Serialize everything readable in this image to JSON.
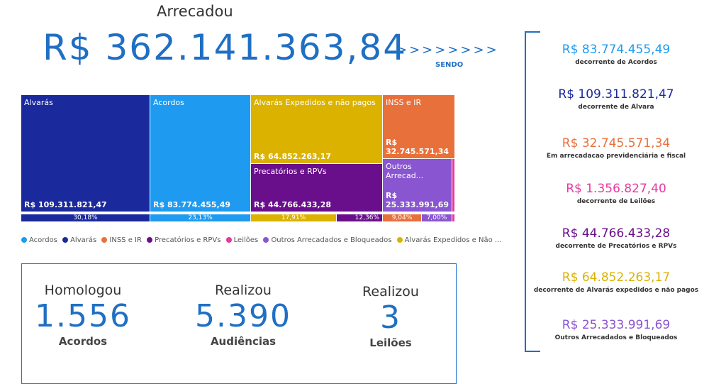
{
  "header": {
    "title": "Arrecadou",
    "total": "R$ 362.141.363,84",
    "arrows": ">>>>>>>>",
    "sendo": "SENDO"
  },
  "treemap": {
    "tiles": [
      {
        "label": "Alvarás",
        "value": "R$ 109.311.821,47",
        "color": "#1a2a9c"
      },
      {
        "label": "Acordos",
        "value": "R$ 83.774.455,49",
        "color": "#1e9bf0"
      },
      {
        "label": "Alvarás Expedidos e não pagos",
        "value": "R$ 64.852.263,17",
        "color": "#dbb200"
      },
      {
        "label": "Precatórios e RPVs",
        "value": "R$ 44.766.433,28",
        "color": "#6a0f8c"
      },
      {
        "label": "INSS e IR",
        "value": "R$ 32.745.571,34",
        "color": "#e8703a"
      },
      {
        "label": "Outros Arrecad...",
        "value": "R$ 25.333.991,69",
        "color": "#8a55d0"
      },
      {
        "label": "",
        "value": "",
        "color": "#e7399f"
      }
    ],
    "percents": [
      "30,18%",
      "23,13%",
      "17,91%",
      "12,36%",
      "9,04%",
      "7,00%"
    ]
  },
  "legend": [
    {
      "label": "Acordos",
      "color": "#1e9bf0"
    },
    {
      "label": "Alvarás",
      "color": "#1a2a9c"
    },
    {
      "label": "INSS e IR",
      "color": "#e8703a"
    },
    {
      "label": "Precatórios e RPVs",
      "color": "#6a0f8c"
    },
    {
      "label": "Leilões",
      "color": "#e7399f"
    },
    {
      "label": "Outros Arrecadados e Bloqueados",
      "color": "#8a55d0"
    },
    {
      "label": "Alvarás Expedidos e Não ...",
      "color": "#dbb200"
    }
  ],
  "kpis": [
    {
      "title": "Homologou",
      "number": "1.556",
      "subtitle": "Acordos"
    },
    {
      "title": "Realizou",
      "number": "5.390",
      "subtitle": "Audiências"
    },
    {
      "title": "Realizou",
      "number": "3",
      "subtitle": "Leilões"
    }
  ],
  "breakdown": [
    {
      "value": "R$ 83.774.455,49",
      "desc": "decorrente de Acordos",
      "color": "#1e9bf0"
    },
    {
      "value": "R$ 109.311.821,47",
      "desc": "decorrente de Alvara",
      "color": "#1a2a9c"
    },
    {
      "value": "R$ 32.745.571,34",
      "desc": "Em arrecadacao previdenciária e fiscal",
      "color": "#e8703a"
    },
    {
      "value": "R$ 1.356.827,40",
      "desc": "decorrente de Leilões",
      "color": "#e7399f"
    },
    {
      "value": "R$ 44.766.433,28",
      "desc": "decorrente de Precatórios e RPVs",
      "color": "#6a0f8c"
    },
    {
      "value": "R$ 64.852.263,17",
      "desc": "decorrente de Alvarás expedidos e não pagos",
      "color": "#dbb200"
    },
    {
      "value": "R$ 25.333.991,69",
      "desc": "Outros Arrecadados e Bloqueados",
      "color": "#8a55d0"
    }
  ]
}
